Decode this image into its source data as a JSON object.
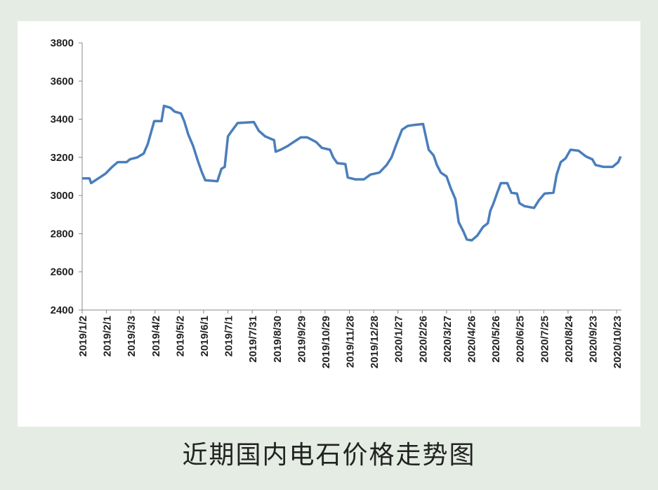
{
  "chart_data": {
    "type": "line",
    "caption": "近期国内电石价格走势图",
    "x": [
      "2019/1/2",
      "2019/1/11",
      "2019/1/13",
      "2019/1/22",
      "2019/1/31",
      "2019/2/8",
      "2019/2/15",
      "2019/2/26",
      "2019/3/2",
      "2019/3/11",
      "2019/3/19",
      "2019/3/24",
      "2019/3/28",
      "2019/4/1",
      "2019/4/10",
      "2019/4/13",
      "2019/4/21",
      "2019/4/26",
      "2019/5/4",
      "2019/5/8",
      "2019/5/13",
      "2019/5/19",
      "2019/5/25",
      "2019/5/30",
      "2019/6/3",
      "2019/6/18",
      "2019/6/23",
      "2019/6/27",
      "2019/7/1",
      "2019/7/6",
      "2019/7/13",
      "2019/8/2",
      "2019/8/8",
      "2019/8/16",
      "2019/8/27",
      "2019/8/29",
      "2019/9/4",
      "2019/9/13",
      "2019/9/20",
      "2019/9/29",
      "2019/10/7",
      "2019/10/18",
      "2019/10/25",
      "2019/11/4",
      "2019/11/8",
      "2019/11/13",
      "2019/11/23",
      "2019/11/26",
      "2019/12/5",
      "2019/12/16",
      "2019/12/24",
      "2020/1/4",
      "2020/1/13",
      "2020/1/19",
      "2020/1/26",
      "2020/2/1",
      "2020/2/8",
      "2020/2/16",
      "2020/2/27",
      "2020/3/5",
      "2020/3/11",
      "2020/3/15",
      "2020/3/20",
      "2020/3/27",
      "2020/4/1",
      "2020/4/7",
      "2020/4/11",
      "2020/4/17",
      "2020/4/21",
      "2020/4/27",
      "2020/5/4",
      "2020/5/11",
      "2020/5/17",
      "2020/5/20",
      "2020/5/24",
      "2020/5/29",
      "2020/6/2",
      "2020/6/10",
      "2020/6/15",
      "2020/6/22",
      "2020/6/25",
      "2020/7/1",
      "2020/7/13",
      "2020/7/19",
      "2020/7/26",
      "2020/8/6",
      "2020/8/10",
      "2020/8/15",
      "2020/8/21",
      "2020/8/27",
      "2020/9/6",
      "2020/9/15",
      "2020/9/23",
      "2020/9/27",
      "2020/10/7",
      "2020/10/18",
      "2020/10/25",
      "2020/10/28"
    ],
    "series": [
      {
        "name": "电石价格",
        "color": "#4a7ebb",
        "values": [
          3090,
          3090,
          3065,
          3090,
          3115,
          3150,
          3175,
          3175,
          3190,
          3200,
          3220,
          3270,
          3330,
          3390,
          3390,
          3470,
          3460,
          3440,
          3430,
          3390,
          3320,
          3260,
          3180,
          3120,
          3080,
          3075,
          3140,
          3150,
          3310,
          3340,
          3380,
          3385,
          3340,
          3310,
          3290,
          3230,
          3240,
          3260,
          3280,
          3305,
          3305,
          3280,
          3250,
          3240,
          3200,
          3170,
          3165,
          3095,
          3085,
          3085,
          3110,
          3120,
          3160,
          3200,
          3280,
          3345,
          3365,
          3370,
          3375,
          3240,
          3210,
          3160,
          3120,
          3100,
          3040,
          2980,
          2860,
          2810,
          2770,
          2765,
          2790,
          2835,
          2855,
          2920,
          2960,
          3020,
          3065,
          3065,
          3015,
          3010,
          2960,
          2945,
          2935,
          2975,
          3010,
          3015,
          3110,
          3175,
          3195,
          3240,
          3235,
          3205,
          3190,
          3160,
          3150,
          3150,
          3175,
          3205
        ]
      }
    ],
    "xlim": [
      "2019/1/2",
      "2020/10/29"
    ],
    "xticks": [
      "2019/1/2",
      "2019/2/1",
      "2019/3/3",
      "2019/4/2",
      "2019/5/2",
      "2019/6/1",
      "2019/7/1",
      "2019/7/31",
      "2019/8/30",
      "2019/9/29",
      "2019/10/29",
      "2019/11/28",
      "2019/12/28",
      "2020/1/27",
      "2020/2/26",
      "2020/3/27",
      "2020/4/26",
      "2020/5/26",
      "2020/6/25",
      "2020/7/25",
      "2020/8/24",
      "2020/9/23",
      "2020/10/23"
    ],
    "ylim": [
      2400,
      3800
    ],
    "yticks": [
      2400,
      2600,
      2800,
      3000,
      3200,
      3400,
      3600,
      3800
    ],
    "grid": false
  }
}
